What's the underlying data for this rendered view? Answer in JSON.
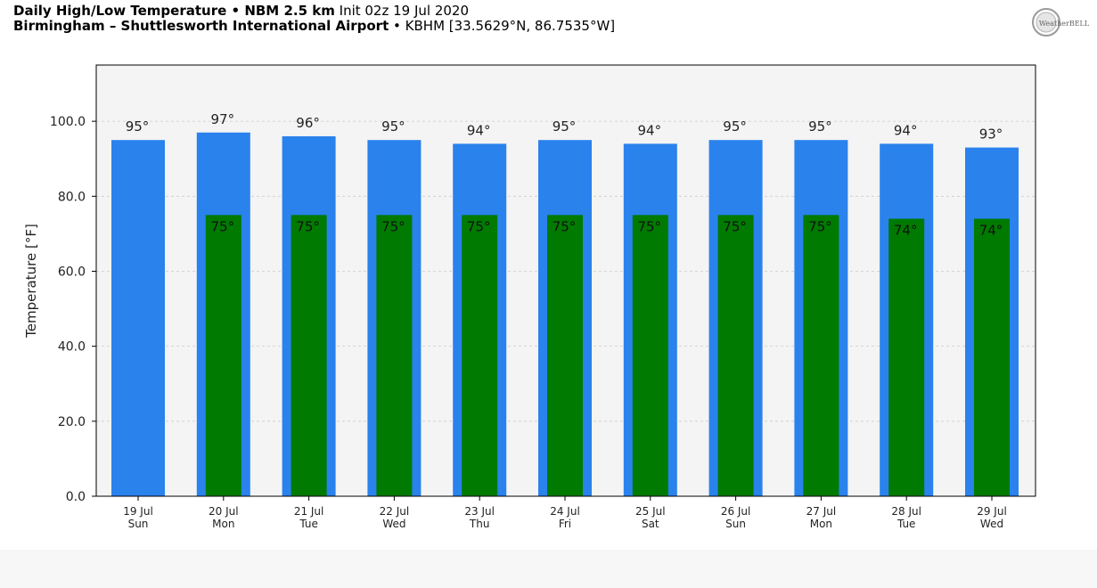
{
  "header": {
    "line1_bold": "Daily High/Low Temperature • NBM 2.5 km",
    "line1_normal": "Init 02z 19 Jul 2020",
    "line2_bold": "Birmingham – Shuttlesworth International Airport",
    "line2_normal": "• KBHM [33.5629°N, 86.7535°W]"
  },
  "logo": {
    "text": "WeatherBELL",
    "icon": "weatherbell-logo"
  },
  "colors": {
    "high_bar": "#2a82ed",
    "low_bar": "#007a00",
    "plot_bg": "#f4f4f4",
    "grid": "#cccccc"
  },
  "chart_data": {
    "type": "bar",
    "ylabel": "Temperature [°F]",
    "ylim": [
      0,
      115
    ],
    "yticks": [
      "0.0",
      "20.0",
      "40.0",
      "60.0",
      "80.0",
      "100.0"
    ],
    "ytick_values": [
      0,
      20,
      40,
      60,
      80,
      100
    ],
    "grid": "horizontal dashed",
    "categories": [
      {
        "date": "19 Jul",
        "day": "Sun"
      },
      {
        "date": "20 Jul",
        "day": "Mon"
      },
      {
        "date": "21 Jul",
        "day": "Tue"
      },
      {
        "date": "22 Jul",
        "day": "Wed"
      },
      {
        "date": "23 Jul",
        "day": "Thu"
      },
      {
        "date": "24 Jul",
        "day": "Fri"
      },
      {
        "date": "25 Jul",
        "day": "Sat"
      },
      {
        "date": "26 Jul",
        "day": "Sun"
      },
      {
        "date": "27 Jul",
        "day": "Mon"
      },
      {
        "date": "28 Jul",
        "day": "Tue"
      },
      {
        "date": "29 Jul",
        "day": "Wed"
      }
    ],
    "series": [
      {
        "values": [
          95,
          97,
          96,
          95,
          94,
          95,
          94,
          95,
          95,
          94,
          93
        ],
        "labels": [
          "95°",
          "97°",
          "96°",
          "95°",
          "94°",
          "95°",
          "94°",
          "95°",
          "95°",
          "94°",
          "93°"
        ]
      },
      {
        "values": [
          null,
          75,
          75,
          75,
          75,
          75,
          75,
          75,
          75,
          74,
          74
        ],
        "labels": [
          null,
          "75°",
          "75°",
          "75°",
          "75°",
          "75°",
          "75°",
          "75°",
          "75°",
          "74°",
          "74°"
        ]
      }
    ]
  }
}
